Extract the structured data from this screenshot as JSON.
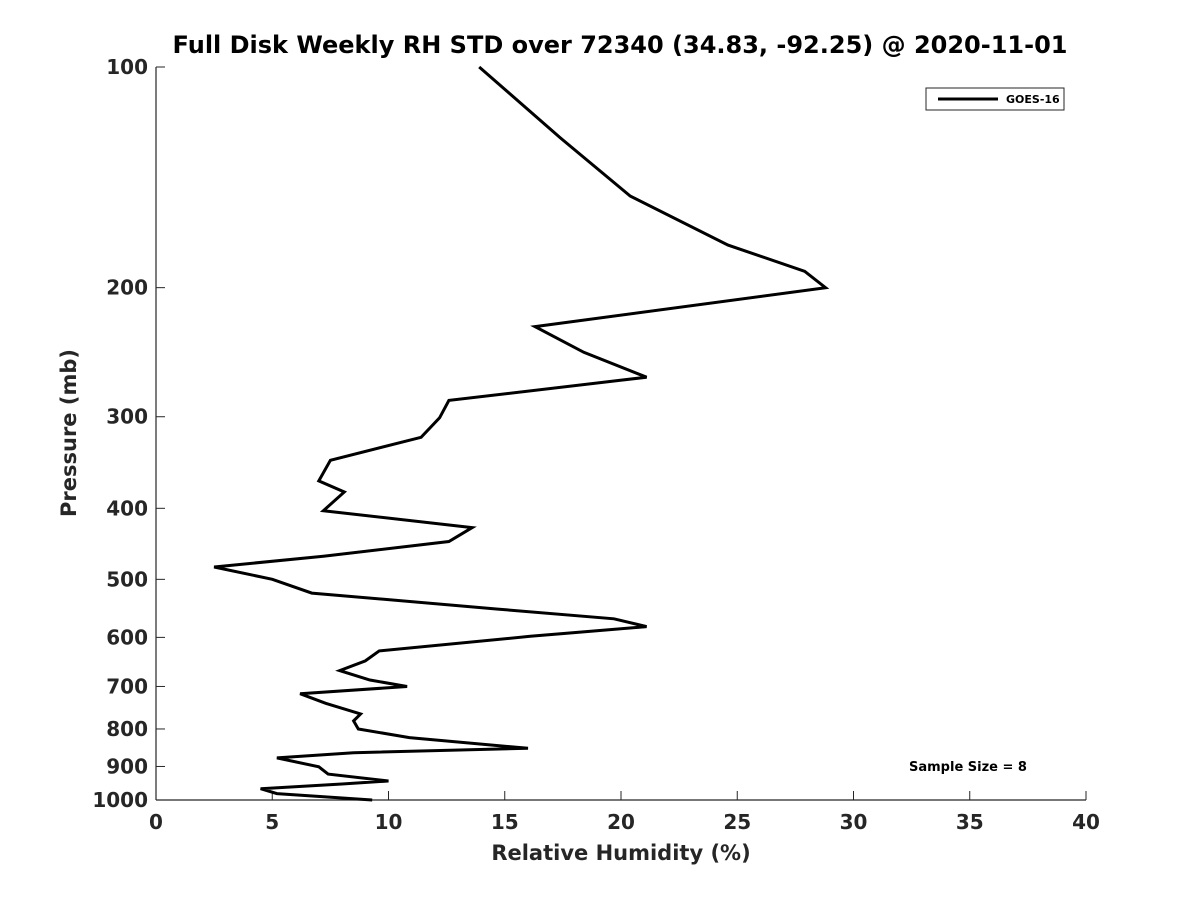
{
  "chart_data": {
    "type": "line",
    "title": "Full Disk Weekly RH STD over 72340 (34.83, -92.25) @ 2020-11-01",
    "xlabel": "Relative Humidity (%)",
    "ylabel": "Pressure (mb)",
    "xlim": [
      0,
      40
    ],
    "ylim": [
      100,
      1000
    ],
    "y_scale": "log",
    "y_reversed": true,
    "x_ticks": [
      0,
      5,
      10,
      15,
      20,
      25,
      30,
      35,
      40
    ],
    "y_ticks": [
      100,
      200,
      300,
      400,
      500,
      600,
      700,
      800,
      900,
      1000
    ],
    "grid": false,
    "legend_position": "top-right",
    "series": [
      {
        "name": "GOES-16",
        "color": "#000000",
        "points": [
          [
            13.9,
            100
          ],
          [
            17.4,
            125
          ],
          [
            20.4,
            150
          ],
          [
            24.6,
            175
          ],
          [
            27.9,
            190
          ],
          [
            28.8,
            200
          ],
          [
            16.3,
            226
          ],
          [
            18.4,
            245
          ],
          [
            21.1,
            265
          ],
          [
            12.6,
            285
          ],
          [
            12.2,
            301
          ],
          [
            11.4,
            320
          ],
          [
            7.5,
            344
          ],
          [
            7.0,
            367
          ],
          [
            8.1,
            380
          ],
          [
            7.2,
            403
          ],
          [
            13.6,
            425
          ],
          [
            12.6,
            444
          ],
          [
            7.2,
            465
          ],
          [
            2.5,
            481
          ],
          [
            5.0,
            500
          ],
          [
            6.7,
            522
          ],
          [
            14.7,
            549
          ],
          [
            19.7,
            566
          ],
          [
            21.1,
            580
          ],
          [
            16.1,
            598
          ],
          [
            9.6,
            626
          ],
          [
            9.0,
            646
          ],
          [
            7.9,
            666
          ],
          [
            9.2,
            686
          ],
          [
            10.8,
            700
          ],
          [
            6.2,
            716
          ],
          [
            7.3,
            738
          ],
          [
            8.8,
            763
          ],
          [
            8.5,
            780
          ],
          [
            8.7,
            800
          ],
          [
            10.9,
            822
          ],
          [
            16.0,
            850
          ],
          [
            8.5,
            862
          ],
          [
            5.2,
            876
          ],
          [
            7.0,
            901
          ],
          [
            7.4,
            922
          ],
          [
            10.0,
            942
          ],
          [
            8.0,
            951
          ],
          [
            4.5,
            965
          ],
          [
            5.2,
            980
          ],
          [
            9.3,
            1000
          ]
        ]
      }
    ],
    "annotations": [
      "Sample Size = 8"
    ]
  }
}
